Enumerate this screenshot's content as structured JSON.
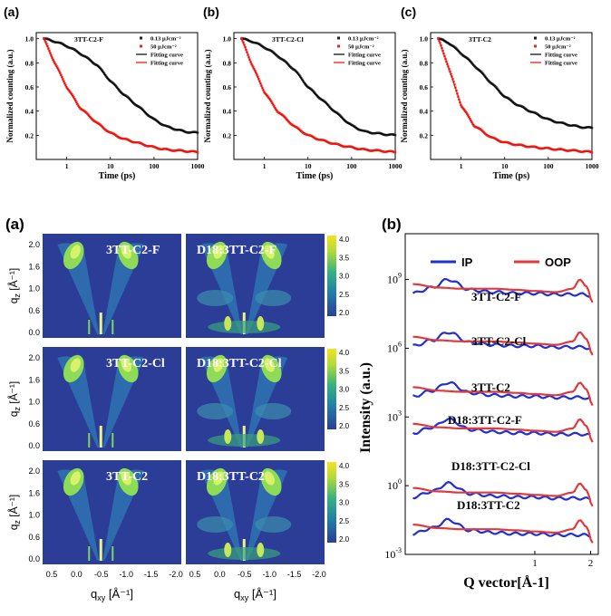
{
  "decay_panels": {
    "panel_labels": [
      "(a)",
      "(b)",
      "(c)"
    ],
    "legend": {
      "low_fluence": "0.13 μJcm⁻²",
      "high_fluence": "50 μJcm⁻²",
      "fit_low": "Fitting curve",
      "fit_high": "Fitting curve"
    },
    "colors": {
      "low": "#222222",
      "high": "#e8281e",
      "fit_low": "#000000",
      "fit_high": "#ff0000"
    }
  },
  "giwaxs": {
    "panel_label": "(a)",
    "xlabel": "q",
    "xlabel_sub": "xy",
    "xlabel_unit": " [Å⁻¹]",
    "ylabel": "q",
    "ylabel_sub": "z",
    "ylabel_unit": " [Å⁻¹]",
    "x_ticks": [
      "0.5",
      "0.0",
      "-0.5",
      "-1.0",
      "-1.5",
      "-2.0"
    ],
    "y_ticks": [
      "2.0",
      "1.6",
      "1.0",
      "0.6",
      "0.0"
    ],
    "colorbar_ticks": [
      "4.0",
      "3.5",
      "3.0",
      "2.5",
      "2.0"
    ],
    "images": [
      {
        "label": "3TT-C2-F",
        "type": "neat"
      },
      {
        "label": "D18:3TT-C2-F",
        "type": "blend"
      },
      {
        "label": "3TT-C2-Cl",
        "type": "neat"
      },
      {
        "label": "D18:3TT-C2-Cl",
        "type": "blend"
      },
      {
        "label": "3TT-C2",
        "type": "neat"
      },
      {
        "label": "D18:3TT-C2",
        "type": "blend"
      }
    ]
  },
  "chart_data": [
    {
      "type": "line",
      "panel": "(a)",
      "annotation": "3TT-C2-F",
      "xlabel": "Time (ps)",
      "ylabel": "Normalized counting (a.u.)",
      "xscale": "log",
      "xlim": [
        0.2,
        1000
      ],
      "ylim": [
        0,
        1.05
      ],
      "x_ticks": [
        1,
        10,
        100,
        1000
      ],
      "y_ticks": [
        0.2,
        0.4,
        0.6,
        0.8,
        1.0
      ],
      "series": [
        {
          "name": "0.13 μJcm⁻²",
          "x": [
            0.3,
            0.5,
            1,
            2,
            5,
            10,
            20,
            50,
            100,
            200,
            500,
            1000
          ],
          "y": [
            1.0,
            0.98,
            0.94,
            0.88,
            0.78,
            0.65,
            0.54,
            0.42,
            0.33,
            0.27,
            0.23,
            0.22
          ]
        },
        {
          "name": "50 μJcm⁻²",
          "x": [
            0.3,
            0.5,
            1,
            2,
            5,
            10,
            20,
            50,
            100,
            200,
            500,
            1000
          ],
          "y": [
            1.0,
            0.82,
            0.6,
            0.43,
            0.3,
            0.22,
            0.17,
            0.13,
            0.1,
            0.08,
            0.07,
            0.06
          ]
        }
      ]
    },
    {
      "type": "line",
      "panel": "(b)",
      "annotation": "3TT-C2-Cl",
      "xlabel": "Time (ps)",
      "ylabel": "Normalized counting (a.u.)",
      "xscale": "log",
      "xlim": [
        0.2,
        1000
      ],
      "ylim": [
        0,
        1.05
      ],
      "x_ticks": [
        1,
        10,
        100,
        1000
      ],
      "y_ticks": [
        0.2,
        0.4,
        0.6,
        0.8,
        1.0
      ],
      "series": [
        {
          "name": "0.13 μJcm⁻²",
          "x": [
            0.3,
            0.5,
            1,
            2,
            5,
            10,
            20,
            50,
            100,
            200,
            500,
            1000
          ],
          "y": [
            1.0,
            0.98,
            0.93,
            0.86,
            0.74,
            0.6,
            0.5,
            0.37,
            0.28,
            0.23,
            0.21,
            0.2
          ]
        },
        {
          "name": "50 μJcm⁻²",
          "x": [
            0.3,
            0.5,
            1,
            2,
            5,
            10,
            20,
            50,
            100,
            200,
            500,
            1000
          ],
          "y": [
            1.0,
            0.8,
            0.56,
            0.4,
            0.27,
            0.2,
            0.16,
            0.12,
            0.1,
            0.08,
            0.07,
            0.06
          ]
        }
      ]
    },
    {
      "type": "line",
      "panel": "(c)",
      "annotation": "3TT-C2",
      "xlabel": "Time (ps)",
      "ylabel": "Normalized counting (a.u.)",
      "xscale": "log",
      "xlim": [
        0.2,
        1000
      ],
      "ylim": [
        0,
        1.05
      ],
      "x_ticks": [
        1,
        10,
        100,
        1000
      ],
      "y_ticks": [
        0.2,
        0.4,
        0.6,
        0.8,
        1.0
      ],
      "series": [
        {
          "name": "0.13 μJcm⁻²",
          "x": [
            0.3,
            0.5,
            1,
            2,
            5,
            10,
            20,
            50,
            100,
            200,
            500,
            1000
          ],
          "y": [
            1.0,
            0.97,
            0.88,
            0.78,
            0.63,
            0.52,
            0.45,
            0.38,
            0.33,
            0.3,
            0.27,
            0.26
          ]
        },
        {
          "name": "50 μJcm⁻²",
          "x": [
            0.3,
            0.5,
            1,
            2,
            5,
            10,
            20,
            50,
            100,
            200,
            500,
            1000
          ],
          "y": [
            1.0,
            0.78,
            0.45,
            0.28,
            0.18,
            0.14,
            0.12,
            0.1,
            0.09,
            0.08,
            0.07,
            0.06
          ]
        }
      ]
    },
    {
      "type": "line",
      "panel": "(b)",
      "xlabel": "Q vector[Å-1]",
      "ylabel": "Intensity (a.u.)",
      "xscale": "log",
      "yscale": "log",
      "xlim": [
        0.2,
        2.2
      ],
      "ylim": [
        0.001,
        100000000000.0
      ],
      "x_ticks": [
        1,
        2
      ],
      "y_ticks": [
        {
          "base": "10",
          "exp": "-3"
        },
        {
          "base": "10",
          "exp": "0"
        },
        {
          "base": "10",
          "exp": "3"
        },
        {
          "base": "10",
          "exp": "6"
        },
        {
          "base": "10",
          "exp": "9"
        }
      ],
      "legend": [
        {
          "name": "IP",
          "color": "#1f2fd6"
        },
        {
          "name": "OOP",
          "color": "#e03a3a"
        }
      ],
      "curve_labels": [
        "3TT-C2-F",
        "3TT-C2-Cl",
        "3TT-C2",
        "D18:3TT-C2-F",
        "D18:3TT-C2-Cl",
        "D18:3TT-C2"
      ],
      "offsets_log10": [
        8.3,
        6.0,
        3.8,
        2.2,
        -0.6,
        -2.2
      ],
      "series": [
        {
          "name": "IP",
          "x": [
            0.22,
            0.28,
            0.34,
            0.45,
            0.6,
            0.8,
            1.0,
            1.3,
            1.6,
            1.8,
            2.0
          ],
          "y_log10_rel": [
            0.1,
            0.35,
            0.7,
            0.25,
            0.15,
            0.1,
            0.1,
            0.05,
            0.05,
            0.05,
            0.0
          ]
        },
        {
          "name": "OOP",
          "x": [
            0.22,
            0.3,
            0.4,
            0.6,
            0.8,
            1.0,
            1.3,
            1.6,
            1.75,
            1.9,
            2.05
          ],
          "y_log10_rel": [
            0.5,
            0.35,
            0.3,
            0.3,
            0.25,
            0.2,
            0.15,
            0.3,
            0.7,
            0.4,
            -0.3
          ]
        }
      ]
    }
  ]
}
